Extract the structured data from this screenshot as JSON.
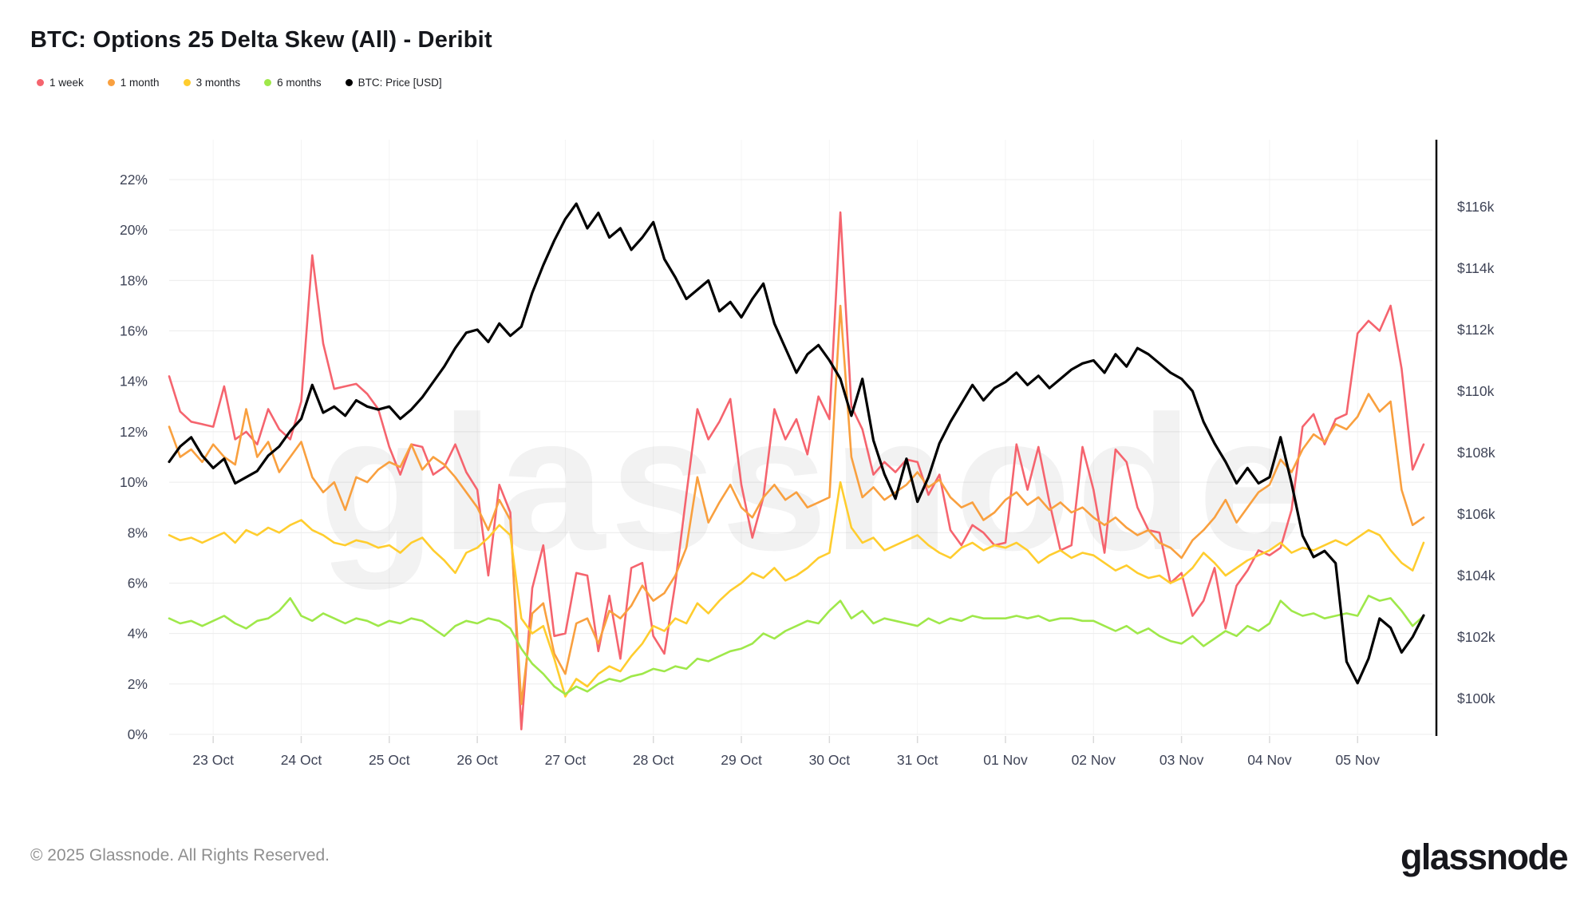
{
  "header": {
    "title": "BTC: Options 25 Delta Skew (All) - Deribit"
  },
  "legend": [
    {
      "label": "1 week",
      "color": "#F5646E"
    },
    {
      "label": "1 month",
      "color": "#F9A03F"
    },
    {
      "label": "3 months",
      "color": "#FFCD2E"
    },
    {
      "label": "6 months",
      "color": "#9FE84A"
    },
    {
      "label": "BTC: Price [USD]",
      "color": "#000000"
    }
  ],
  "watermark": "glassnode",
  "footer": {
    "copyright": "© 2025 Glassnode. All Rights Reserved.",
    "logo_text": "glassnode"
  },
  "chart_data": {
    "type": "line",
    "title": "BTC: Options 25 Delta Skew (All) - Deribit",
    "x_unit": "days relative to 23 Oct 00:00",
    "x_start": -0.5,
    "x_step": 0.125,
    "x_domain": [
      -0.5,
      13.85
    ],
    "x_tick_days": [
      0,
      1,
      2,
      3,
      4,
      5,
      6,
      7,
      8,
      9,
      10,
      11,
      12,
      13
    ],
    "x_tick_labels": [
      "23 Oct",
      "24 Oct",
      "25 Oct",
      "26 Oct",
      "27 Oct",
      "28 Oct",
      "29 Oct",
      "30 Oct",
      "31 Oct",
      "01 Nov",
      "02 Nov",
      "03 Nov",
      "04 Nov",
      "05 Nov"
    ],
    "left_axis": {
      "unit": "%",
      "ylim": [
        0,
        22
      ],
      "tick_values": [
        0,
        2,
        4,
        6,
        8,
        10,
        12,
        14,
        16,
        18,
        20,
        22
      ],
      "tick_labels": [
        "0%",
        "2%",
        "4%",
        "6%",
        "8%",
        "10%",
        "12%",
        "14%",
        "16%",
        "18%",
        "20%",
        "22%"
      ]
    },
    "right_axis": {
      "unit": "USD",
      "ylim_k": [
        100,
        116
      ],
      "tick_values_k": [
        116,
        114,
        112,
        110,
        108,
        106,
        104,
        102,
        100
      ],
      "tick_labels": [
        "$116k",
        "$114k",
        "$112k",
        "$110k",
        "$108k",
        "$106k",
        "$104k",
        "$102k",
        "$100k"
      ]
    },
    "grid": {
      "horizontal": true,
      "vertical": true
    },
    "legend_position": "top-left",
    "series": [
      {
        "name": "1 week",
        "axis": "left",
        "color": "#F5646E",
        "width": 2.6,
        "values": [
          14.2,
          12.8,
          12.4,
          12.3,
          12.2,
          13.8,
          11.7,
          12.0,
          11.5,
          12.9,
          12.1,
          11.7,
          13.2,
          19.0,
          15.5,
          13.7,
          13.8,
          13.9,
          13.5,
          12.9,
          11.4,
          10.3,
          11.5,
          11.4,
          10.3,
          10.6,
          11.5,
          10.4,
          9.7,
          6.3,
          9.9,
          8.8,
          0.2,
          5.8,
          7.5,
          3.9,
          4.0,
          6.4,
          6.3,
          3.3,
          5.5,
          3.0,
          6.6,
          6.8,
          3.9,
          3.2,
          6.0,
          9.5,
          12.9,
          11.7,
          12.4,
          13.3,
          9.9,
          7.8,
          9.4,
          12.9,
          11.7,
          12.5,
          11.1,
          13.4,
          12.5,
          20.7,
          13.0,
          12.1,
          10.3,
          10.8,
          10.4,
          10.9,
          10.8,
          9.5,
          10.3,
          8.1,
          7.5,
          8.3,
          8.0,
          7.5,
          7.6,
          11.5,
          9.7,
          11.4,
          9.2,
          7.3,
          7.5,
          11.4,
          9.7,
          7.2,
          11.3,
          10.8,
          9.0,
          8.1,
          8.0,
          6.0,
          6.4,
          4.7,
          5.3,
          6.6,
          4.2,
          5.9,
          6.5,
          7.3,
          7.1,
          7.4,
          8.9,
          12.2,
          12.7,
          11.5,
          12.5,
          12.7,
          15.9,
          16.4,
          16.0,
          17.0,
          14.5,
          10.5,
          11.5
        ]
      },
      {
        "name": "1 month",
        "axis": "left",
        "color": "#F9A03F",
        "width": 2.6,
        "values": [
          12.2,
          11.0,
          11.3,
          10.8,
          11.5,
          11.0,
          10.7,
          12.9,
          11.0,
          11.6,
          10.4,
          11.0,
          11.6,
          10.2,
          9.6,
          10.0,
          8.9,
          10.2,
          10.0,
          10.5,
          10.8,
          10.6,
          11.5,
          10.5,
          11.0,
          10.7,
          10.2,
          9.6,
          9.0,
          8.1,
          9.3,
          8.5,
          1.2,
          4.8,
          5.2,
          3.2,
          2.4,
          4.4,
          4.6,
          3.6,
          4.9,
          4.6,
          5.1,
          5.9,
          5.3,
          5.6,
          6.3,
          7.4,
          10.2,
          8.4,
          9.2,
          9.9,
          9.0,
          8.6,
          9.4,
          9.9,
          9.3,
          9.6,
          9.0,
          9.2,
          9.4,
          17.0,
          11.0,
          9.4,
          9.8,
          9.3,
          9.6,
          9.9,
          10.4,
          9.8,
          10.1,
          9.4,
          9.0,
          9.2,
          8.5,
          8.8,
          9.3,
          9.6,
          9.1,
          9.4,
          8.9,
          9.2,
          8.8,
          9.0,
          8.6,
          8.3,
          8.6,
          8.2,
          7.9,
          8.1,
          7.6,
          7.4,
          7.0,
          7.7,
          8.1,
          8.6,
          9.3,
          8.4,
          9.0,
          9.6,
          9.9,
          10.9,
          10.4,
          11.3,
          11.9,
          11.6,
          12.3,
          12.1,
          12.6,
          13.5,
          12.8,
          13.2,
          9.7,
          8.3,
          8.6
        ]
      },
      {
        "name": "3 months",
        "axis": "left",
        "color": "#FFCD2E",
        "width": 2.6,
        "values": [
          7.9,
          7.7,
          7.8,
          7.6,
          7.8,
          8.0,
          7.6,
          8.1,
          7.9,
          8.2,
          8.0,
          8.3,
          8.5,
          8.1,
          7.9,
          7.6,
          7.5,
          7.7,
          7.6,
          7.4,
          7.5,
          7.2,
          7.6,
          7.8,
          7.3,
          6.9,
          6.4,
          7.2,
          7.4,
          7.8,
          8.3,
          7.9,
          4.6,
          4.0,
          4.3,
          3.0,
          1.5,
          2.2,
          1.9,
          2.4,
          2.7,
          2.5,
          3.1,
          3.6,
          4.3,
          4.1,
          4.6,
          4.4,
          5.2,
          4.8,
          5.3,
          5.7,
          6.0,
          6.4,
          6.2,
          6.6,
          6.1,
          6.3,
          6.6,
          7.0,
          7.2,
          10.0,
          8.2,
          7.6,
          7.8,
          7.3,
          7.5,
          7.7,
          7.9,
          7.5,
          7.2,
          7.0,
          7.4,
          7.6,
          7.3,
          7.5,
          7.4,
          7.6,
          7.3,
          6.8,
          7.1,
          7.3,
          7.0,
          7.2,
          7.1,
          6.8,
          6.5,
          6.7,
          6.4,
          6.2,
          6.3,
          6.0,
          6.2,
          6.6,
          7.2,
          6.8,
          6.3,
          6.6,
          6.9,
          7.1,
          7.3,
          7.6,
          7.2,
          7.4,
          7.3,
          7.5,
          7.7,
          7.5,
          7.8,
          8.1,
          7.9,
          7.3,
          6.8,
          6.5,
          7.6
        ]
      },
      {
        "name": "6 months",
        "axis": "left",
        "color": "#9FE84A",
        "width": 2.6,
        "values": [
          4.6,
          4.4,
          4.5,
          4.3,
          4.5,
          4.7,
          4.4,
          4.2,
          4.5,
          4.6,
          4.9,
          5.4,
          4.7,
          4.5,
          4.8,
          4.6,
          4.4,
          4.6,
          4.5,
          4.3,
          4.5,
          4.4,
          4.6,
          4.5,
          4.2,
          3.9,
          4.3,
          4.5,
          4.4,
          4.6,
          4.5,
          4.2,
          3.4,
          2.8,
          2.4,
          1.9,
          1.6,
          1.9,
          1.7,
          2.0,
          2.2,
          2.1,
          2.3,
          2.4,
          2.6,
          2.5,
          2.7,
          2.6,
          3.0,
          2.9,
          3.1,
          3.3,
          3.4,
          3.6,
          4.0,
          3.8,
          4.1,
          4.3,
          4.5,
          4.4,
          4.9,
          5.3,
          4.6,
          4.9,
          4.4,
          4.6,
          4.5,
          4.4,
          4.3,
          4.6,
          4.4,
          4.6,
          4.5,
          4.7,
          4.6,
          4.6,
          4.6,
          4.7,
          4.6,
          4.7,
          4.5,
          4.6,
          4.6,
          4.5,
          4.5,
          4.3,
          4.1,
          4.3,
          4.0,
          4.2,
          3.9,
          3.7,
          3.6,
          3.9,
          3.5,
          3.8,
          4.1,
          3.9,
          4.3,
          4.1,
          4.4,
          5.3,
          4.9,
          4.7,
          4.8,
          4.6,
          4.7,
          4.8,
          4.7,
          5.5,
          5.3,
          5.4,
          4.9,
          4.3,
          4.7
        ]
      },
      {
        "name": "BTC: Price [USD]",
        "axis": "right",
        "color": "#000000",
        "width": 3.2,
        "unit": "k USD",
        "values": [
          107.7,
          108.2,
          108.5,
          107.9,
          107.5,
          107.8,
          107.0,
          107.2,
          107.4,
          107.9,
          108.2,
          108.7,
          109.1,
          110.2,
          109.3,
          109.5,
          109.2,
          109.7,
          109.5,
          109.4,
          109.5,
          109.1,
          109.4,
          109.8,
          110.3,
          110.8,
          111.4,
          111.9,
          112.0,
          111.6,
          112.2,
          111.8,
          112.1,
          113.2,
          114.1,
          114.9,
          115.6,
          116.1,
          115.3,
          115.8,
          115.0,
          115.3,
          114.6,
          115.0,
          115.5,
          114.3,
          113.7,
          113.0,
          113.3,
          113.6,
          112.6,
          112.9,
          112.4,
          113.0,
          113.5,
          112.2,
          111.4,
          110.6,
          111.2,
          111.5,
          111.0,
          110.4,
          109.2,
          110.4,
          108.4,
          107.3,
          106.5,
          107.8,
          106.4,
          107.2,
          108.3,
          109.0,
          109.6,
          110.2,
          109.7,
          110.1,
          110.3,
          110.6,
          110.2,
          110.5,
          110.1,
          110.4,
          110.7,
          110.9,
          111.0,
          110.6,
          111.2,
          110.8,
          111.4,
          111.2,
          110.9,
          110.6,
          110.4,
          110.0,
          109.0,
          108.3,
          107.7,
          107.0,
          107.5,
          107.0,
          107.2,
          108.5,
          107.0,
          105.3,
          104.6,
          104.8,
          104.4,
          101.2,
          100.5,
          101.3,
          102.6,
          102.3,
          101.5,
          102.0,
          102.7
        ]
      }
    ]
  }
}
